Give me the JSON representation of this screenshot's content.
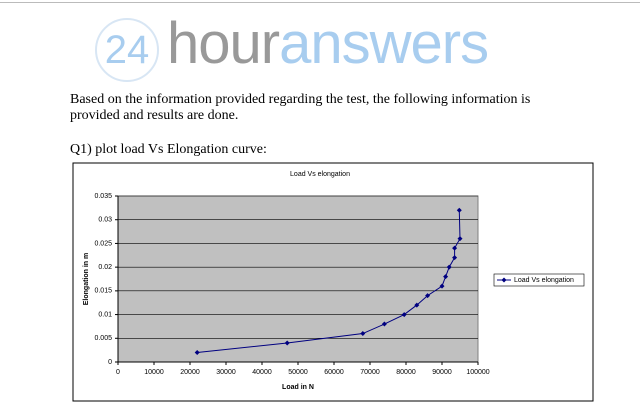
{
  "logo": {
    "number": "24",
    "part1": "hour",
    "part2": "answers"
  },
  "paragraph": "Based on the information provided regarding the test, the following information is provided and results are done.",
  "question": "Q1) plot load Vs Elongation curve:",
  "chart_data": {
    "type": "line",
    "title": "Load Vs elongation",
    "x_label": "Load in N",
    "y_label": "Elongation in m",
    "x": [
      22000,
      47000,
      68000,
      74000,
      79500,
      83000,
      86000,
      90000,
      91000,
      92000,
      93500,
      93500,
      95000,
      94800
    ],
    "series": [
      {
        "name": "Load Vs elongation",
        "color": "#000080",
        "values": [
          0.002,
          0.004,
          0.006,
          0.008,
          0.01,
          0.012,
          0.014,
          0.016,
          0.018,
          0.02,
          0.022,
          0.024,
          0.026,
          0.032
        ]
      }
    ],
    "xlim": [
      0,
      100000
    ],
    "xticks": [
      0,
      10000,
      20000,
      30000,
      40000,
      50000,
      60000,
      70000,
      80000,
      90000,
      100000
    ],
    "ylim": [
      0,
      0.035
    ],
    "yticks": [
      0,
      0.005,
      0.01,
      0.015,
      0.02,
      0.025,
      0.03,
      0.035
    ],
    "grid": true,
    "legend": "right",
    "plot_background": "#c0c0c0"
  }
}
